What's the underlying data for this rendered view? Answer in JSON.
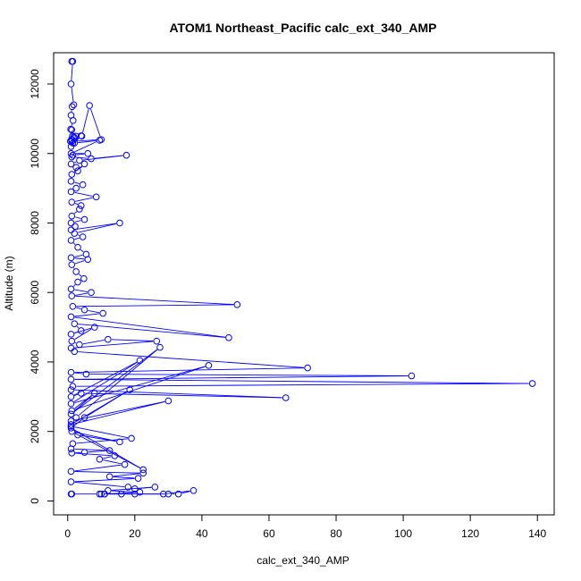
{
  "chart_data": {
    "type": "line",
    "title": "ATOM1 Northeast_Pacific calc_ext_340_AMP",
    "xlabel": "calc_ext_340_AMP",
    "ylabel": "Altitude (m)",
    "xlim": [
      -4.2,
      145
    ],
    "ylim": [
      -400,
      12900
    ],
    "x_ticks": [
      0,
      20,
      40,
      60,
      80,
      100,
      120,
      140
    ],
    "y_ticks": [
      0,
      2000,
      4000,
      6000,
      8000,
      10000,
      12000
    ],
    "grid": false,
    "legend": "none",
    "markers": "open-circle",
    "color": "#0000ff",
    "series": [
      {
        "x": [
          1.2,
          1.5,
          1.0,
          1.8,
          1.3,
          1.0,
          1.6,
          0.9,
          1.2,
          1.4,
          2.0,
          1.1,
          0.8,
          1.5,
          1.0,
          4.0,
          2.5,
          1.8,
          4.2,
          6.5,
          10,
          1.2,
          2.0,
          9.5,
          1.0,
          6,
          1.5,
          1.2,
          7,
          17.5,
          3.5,
          1.0,
          2.5,
          3.0,
          5,
          1.2,
          1.0,
          4.5,
          2.5,
          1.0,
          8.5,
          1.2,
          4.0,
          3.5,
          1.2,
          5.0,
          1.0,
          2.2,
          1.0,
          15.5,
          2.0,
          4.5,
          1.0,
          3.0,
          5.5,
          1.0,
          6.0,
          1.2,
          2.5,
          4.8,
          3.0,
          1.0,
          7.0,
          1.2,
          50.5,
          1.5,
          5.0,
          10.5,
          1.0,
          48,
          2.0,
          4.0,
          1.0,
          8.0,
          1.2,
          3.5,
          12,
          26.5,
          1.0,
          2.0,
          71.5,
          1.0,
          5.5,
          102.5,
          1.0,
          138.5,
          1.5,
          1.0,
          65,
          4.0,
          1.0,
          21.5,
          1.0,
          42,
          1.2,
          8.0,
          1.0,
          27.5,
          2.5,
          1.0,
          30,
          1.0,
          18.5,
          5.0,
          1.0,
          22.5,
          1.2,
          15.5,
          3.0,
          1.0,
          19,
          1.5,
          1.0,
          12.5,
          5.0,
          1.2,
          14,
          9.5,
          17,
          1.0,
          22.5,
          12.5,
          21,
          1.0,
          18,
          20,
          26,
          12,
          21.5,
          11,
          16,
          30,
          33,
          37.5,
          28.5,
          20,
          10,
          11,
          9.5,
          1.0,
          1.2
        ],
        "y": [
          12650,
          12650,
          12000,
          11400,
          11350,
          11100,
          10950,
          10700,
          10680,
          10500,
          10450,
          10400,
          10350,
          10300,
          10200,
          10510,
          10500,
          10480,
          10500,
          11380,
          10400,
          10350,
          10300,
          10380,
          10000,
          10000,
          9950,
          9900,
          9850,
          9950,
          9800,
          9700,
          9600,
          9500,
          9700,
          9400,
          9200,
          9100,
          9000,
          8900,
          8750,
          8600,
          8500,
          8400,
          8200,
          8100,
          8000,
          7900,
          7800,
          8000,
          7700,
          7600,
          7500,
          7300,
          7100,
          7000,
          6950,
          6800,
          6600,
          6400,
          6300,
          6100,
          6000,
          5900,
          5650,
          5600,
          5500,
          5400,
          5300,
          4700,
          5100,
          4900,
          4800,
          5000,
          4600,
          4500,
          4650,
          4600,
          4400,
          4300,
          3830,
          3700,
          3650,
          3600,
          3500,
          3380,
          3300,
          3200,
          2970,
          3100,
          3000,
          4040,
          2800,
          3900,
          2600,
          3100,
          2500,
          4420,
          2400,
          2300,
          2880,
          2200,
          3200,
          2400,
          2100,
          900,
          2000,
          1700,
          1900,
          2150,
          1800,
          1650,
          1500,
          1450,
          1400,
          1380,
          1300,
          1200,
          1050,
          850,
          800,
          700,
          650,
          550,
          400,
          350,
          400,
          300,
          250,
          200,
          200,
          200,
          200,
          300,
          200,
          200,
          200,
          200,
          200,
          200,
          200
        ]
      }
    ]
  }
}
